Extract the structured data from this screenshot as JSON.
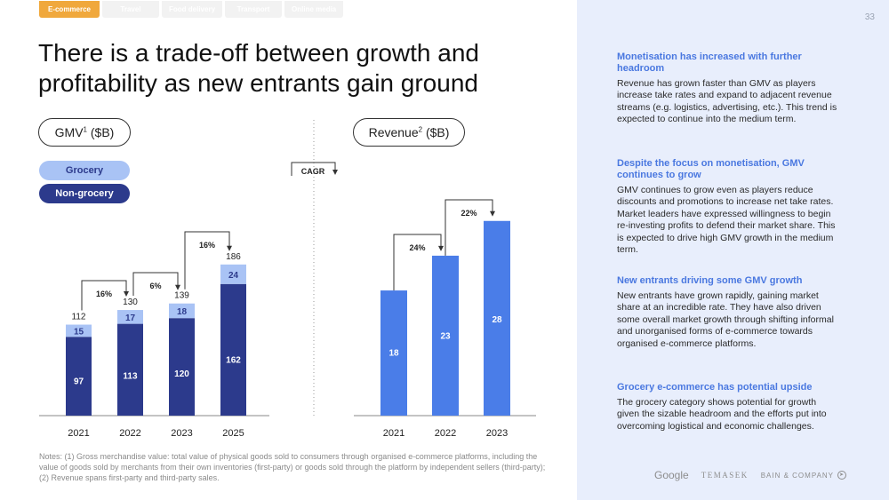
{
  "tabs": [
    {
      "label": "E-commerce",
      "active": true
    },
    {
      "label": "Travel",
      "active": false
    },
    {
      "label": "Food delivery",
      "active": false
    },
    {
      "label": "Transport",
      "active": false
    },
    {
      "label": "Online media",
      "active": false
    }
  ],
  "title": "There is a trade-off between growth and profitability as new entrants gain ground",
  "page_number": "33",
  "gmv_pill": {
    "label": "GMV",
    "sup": "1",
    "unit": "($B)"
  },
  "revenue_pill": {
    "label": "Revenue",
    "sup": "2",
    "unit": "($B)"
  },
  "cagr_label": "CAGR",
  "legend": [
    {
      "label": "Grocery",
      "color": "#a9c3f5",
      "text_color": "#2c3a8c"
    },
    {
      "label": "Non-grocery",
      "color": "#2c3a8c",
      "text_color": "#ffffff"
    }
  ],
  "chart_data": [
    {
      "type": "bar",
      "stacked": true,
      "title": "GMV ($B)",
      "categories": [
        "2021",
        "2022",
        "2023",
        "2025"
      ],
      "series": [
        {
          "name": "Non-grocery",
          "values": [
            97,
            113,
            120,
            162
          ],
          "color": "#2c3a8c"
        },
        {
          "name": "Grocery",
          "values": [
            15,
            17,
            18,
            24
          ],
          "color": "#a9c3f5"
        }
      ],
      "totals": [
        112,
        130,
        139,
        186
      ],
      "cagr": [
        {
          "from": "2021",
          "to": "2022",
          "label": "16%"
        },
        {
          "from": "2022",
          "to": "2023",
          "label": "6%"
        },
        {
          "from": "2023",
          "to": "2025",
          "label": "16%"
        }
      ],
      "ylim": [
        0,
        200
      ],
      "legend_position": "top-left",
      "grid": false
    },
    {
      "type": "bar",
      "title": "Revenue ($B)",
      "categories": [
        "2021",
        "2022",
        "2023"
      ],
      "series": [
        {
          "name": "Revenue",
          "values": [
            18,
            23,
            28
          ],
          "color": "#4a7de8"
        }
      ],
      "cagr": [
        {
          "from": "2021",
          "to": "2022",
          "label": "24%"
        },
        {
          "from": "2022",
          "to": "2023",
          "label": "22%"
        }
      ],
      "ylim": [
        0,
        30
      ],
      "grid": false
    }
  ],
  "sidebar": {
    "sections": [
      {
        "heading": "Monetisation has increased with further headroom",
        "body": "Revenue has grown faster than GMV as players increase take rates and expand to adjacent revenue streams (e.g. logistics, advertising, etc.). This trend is expected to continue into the medium term."
      },
      {
        "heading": "Despite the focus on monetisation, GMV continues to grow",
        "body": "GMV continues to grow even as players reduce discounts and promotions to increase net take rates. Market leaders have expressed willingness to begin re-investing profits to defend their market share. This is expected to drive high GMV growth in the medium term."
      },
      {
        "heading": "New entrants driving some GMV growth",
        "body": "New entrants have grown rapidly, gaining market share at an incredible rate. They have also driven some overall market growth through shifting informal and unorganised forms of e-commerce towards organised e-commerce platforms."
      },
      {
        "heading": "Grocery e-commerce has potential upside",
        "body": "The grocery category shows potential for growth given the sizable headroom and the efforts put into overcoming logistical and economic challenges."
      }
    ]
  },
  "logos": {
    "google": "Google",
    "temasek": "TEMASEK",
    "bain": "BAIN & COMPANY"
  },
  "notes": "Notes: (1) Gross merchandise value: total value of physical goods sold to consumers through organised e-commerce platforms, including the value of goods sold by merchants from their own inventories (first-party) or goods sold through the platform by independent sellers (third-party); (2) Revenue spans first-party and third-party sales."
}
